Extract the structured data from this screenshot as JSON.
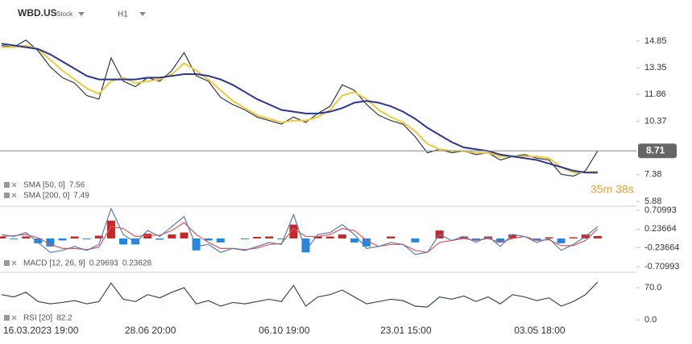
{
  "header": {
    "symbol": "WBD.US",
    "kind": "Stock",
    "interval": "H1",
    "countdown": "35m 38s"
  },
  "chart_data": [
    {
      "type": "line",
      "ylim": [
        5.66,
        16.78
      ],
      "yticks": [
        14.85,
        13.35,
        11.86,
        10.37,
        7.38,
        5.88
      ],
      "series": [
        {
          "name": "WBD.US",
          "color": "#2f3a44",
          "values": [
            14.6,
            14.5,
            14.9,
            14.3,
            13.4,
            12.8,
            12.5,
            11.8,
            11.6,
            13.9,
            12.6,
            12.3,
            12.8,
            12.6,
            13.2,
            14.2,
            12.9,
            12.6,
            11.7,
            11.3,
            11.0,
            10.6,
            10.4,
            10.2,
            10.6,
            10.3,
            10.8,
            11.2,
            12.4,
            12.1,
            11.3,
            10.7,
            10.4,
            10.2,
            9.5,
            8.6,
            8.8,
            8.6,
            8.7,
            8.5,
            8.6,
            8.2,
            8.4,
            8.5,
            8.3,
            8.2,
            7.4,
            7.3,
            7.6,
            8.71
          ]
        },
        {
          "name": "SMA [50, 0]",
          "color": "#f0c93a",
          "values": [
            14.5,
            14.5,
            14.6,
            14.4,
            13.8,
            13.2,
            12.7,
            12.2,
            11.9,
            12.6,
            12.8,
            12.5,
            12.6,
            12.7,
            13.0,
            13.6,
            13.2,
            12.7,
            12.1,
            11.5,
            11.1,
            10.7,
            10.5,
            10.3,
            10.4,
            10.4,
            10.6,
            11.0,
            11.8,
            12.0,
            11.6,
            11.0,
            10.6,
            10.3,
            9.8,
            9.1,
            8.8,
            8.7,
            8.7,
            8.6,
            8.6,
            8.4,
            8.4,
            8.4,
            8.4,
            8.3,
            7.8,
            7.5,
            7.5,
            7.56
          ]
        },
        {
          "name": "SMA [200, 0]",
          "color": "#2b3594",
          "values": [
            14.7,
            14.6,
            14.5,
            14.4,
            14.1,
            13.7,
            13.3,
            12.9,
            12.7,
            12.7,
            12.7,
            12.7,
            12.8,
            12.8,
            12.9,
            13.0,
            13.0,
            12.9,
            12.7,
            12.4,
            12.0,
            11.6,
            11.3,
            11.0,
            10.9,
            10.8,
            10.8,
            10.9,
            11.1,
            11.4,
            11.5,
            11.4,
            11.2,
            10.9,
            10.5,
            10.0,
            9.6,
            9.2,
            8.9,
            8.8,
            8.7,
            8.5,
            8.4,
            8.3,
            8.2,
            8.0,
            7.8,
            7.6,
            7.5,
            7.49
          ]
        }
      ]
    },
    {
      "type": "line",
      "name": "MACD [12, 26, 9]",
      "ylim": [
        -0.83,
        0.79
      ],
      "yticks": [
        0.70993,
        0.23664,
        -0.23664,
        -0.70993
      ],
      "series": [
        {
          "type": "bar",
          "color": "#c62828",
          "negative_color": "#1e88e5",
          "values": [
            0.05,
            -0.02,
            0.05,
            -0.12,
            -0.2,
            -0.05,
            0.05,
            -0.02,
            0.07,
            0.45,
            -0.15,
            -0.15,
            0.12,
            -0.03,
            0.1,
            0.15,
            -0.3,
            -0.05,
            -0.1,
            0,
            -0.02,
            0.04,
            0.05,
            -0.02,
            0.35,
            -0.35,
            0.05,
            0.05,
            0.1,
            -0.1,
            -0.2,
            0,
            0.05,
            0,
            -0.1,
            0,
            0.2,
            0,
            0.05,
            -0.05,
            0.05,
            -0.1,
            0.1,
            0,
            -0.05,
            0.03,
            -0.12,
            0.03,
            0.1,
            0.06065
          ]
        },
        {
          "color": "#e05555",
          "values": [
            0.05,
            0.07,
            0.1,
            0.02,
            -0.15,
            -0.25,
            -0.25,
            -0.28,
            -0.22,
            0.3,
            0.25,
            0.05,
            0.08,
            0.08,
            0.2,
            0.4,
            0.1,
            -0.1,
            -0.25,
            -0.25,
            -0.28,
            -0.24,
            -0.15,
            -0.13,
            0.25,
            0.05,
            0.05,
            0.1,
            0.25,
            0.2,
            -0.05,
            -0.2,
            -0.15,
            -0.15,
            -0.3,
            -0.35,
            -0.1,
            -0.05,
            0.0,
            -0.05,
            0.0,
            -0.1,
            0.0,
            0.05,
            -0.05,
            -0.03,
            -0.18,
            -0.18,
            -0.05,
            0.23628
          ]
        },
        {
          "color": "#5b7bb5",
          "values": [
            0.1,
            0.05,
            0.15,
            -0.1,
            -0.35,
            -0.3,
            -0.2,
            -0.3,
            -0.15,
            0.75,
            0.1,
            -0.1,
            0.2,
            0.05,
            0.3,
            0.55,
            -0.2,
            -0.15,
            -0.35,
            -0.25,
            -0.3,
            -0.2,
            -0.1,
            -0.15,
            0.6,
            -0.3,
            0.1,
            0.15,
            0.35,
            0.1,
            -0.25,
            -0.2,
            -0.1,
            -0.15,
            -0.4,
            -0.35,
            0.1,
            -0.05,
            0.05,
            -0.1,
            0.05,
            -0.2,
            0.1,
            0.05,
            -0.1,
            0.0,
            -0.3,
            -0.15,
            0.05,
            0.29693
          ]
        }
      ]
    },
    {
      "type": "line",
      "ylim": [
        -5,
        100
      ],
      "yticks": [
        {
          "value": 70,
          "label": "70.0"
        },
        {
          "value": 0,
          "label": "0.0"
        }
      ],
      "categories": [
        "16.03.2023 19:00",
        null,
        null,
        null,
        null,
        null,
        null,
        null,
        null,
        null,
        "28.06 20:00",
        null,
        null,
        null,
        null,
        null,
        null,
        null,
        null,
        null,
        null,
        "06.10 19:00",
        null,
        null,
        null,
        null,
        null,
        null,
        null,
        null,
        null,
        "23.01 15:00",
        null,
        null,
        null,
        null,
        null,
        null,
        null,
        null,
        null,
        null,
        "03.05 18:00",
        null,
        null,
        null,
        null,
        null,
        null,
        null
      ],
      "series": [
        {
          "name": "RSI [20]",
          "color": "#3d4a55",
          "values": [
            55,
            50,
            60,
            40,
            35,
            38,
            42,
            35,
            40,
            80,
            45,
            40,
            55,
            48,
            60,
            70,
            35,
            42,
            30,
            38,
            35,
            40,
            45,
            40,
            75,
            30,
            50,
            55,
            65,
            50,
            35,
            40,
            45,
            42,
            30,
            28,
            50,
            45,
            52,
            40,
            50,
            35,
            55,
            50,
            42,
            48,
            30,
            40,
            55,
            82.2
          ]
        }
      ]
    }
  ]
}
